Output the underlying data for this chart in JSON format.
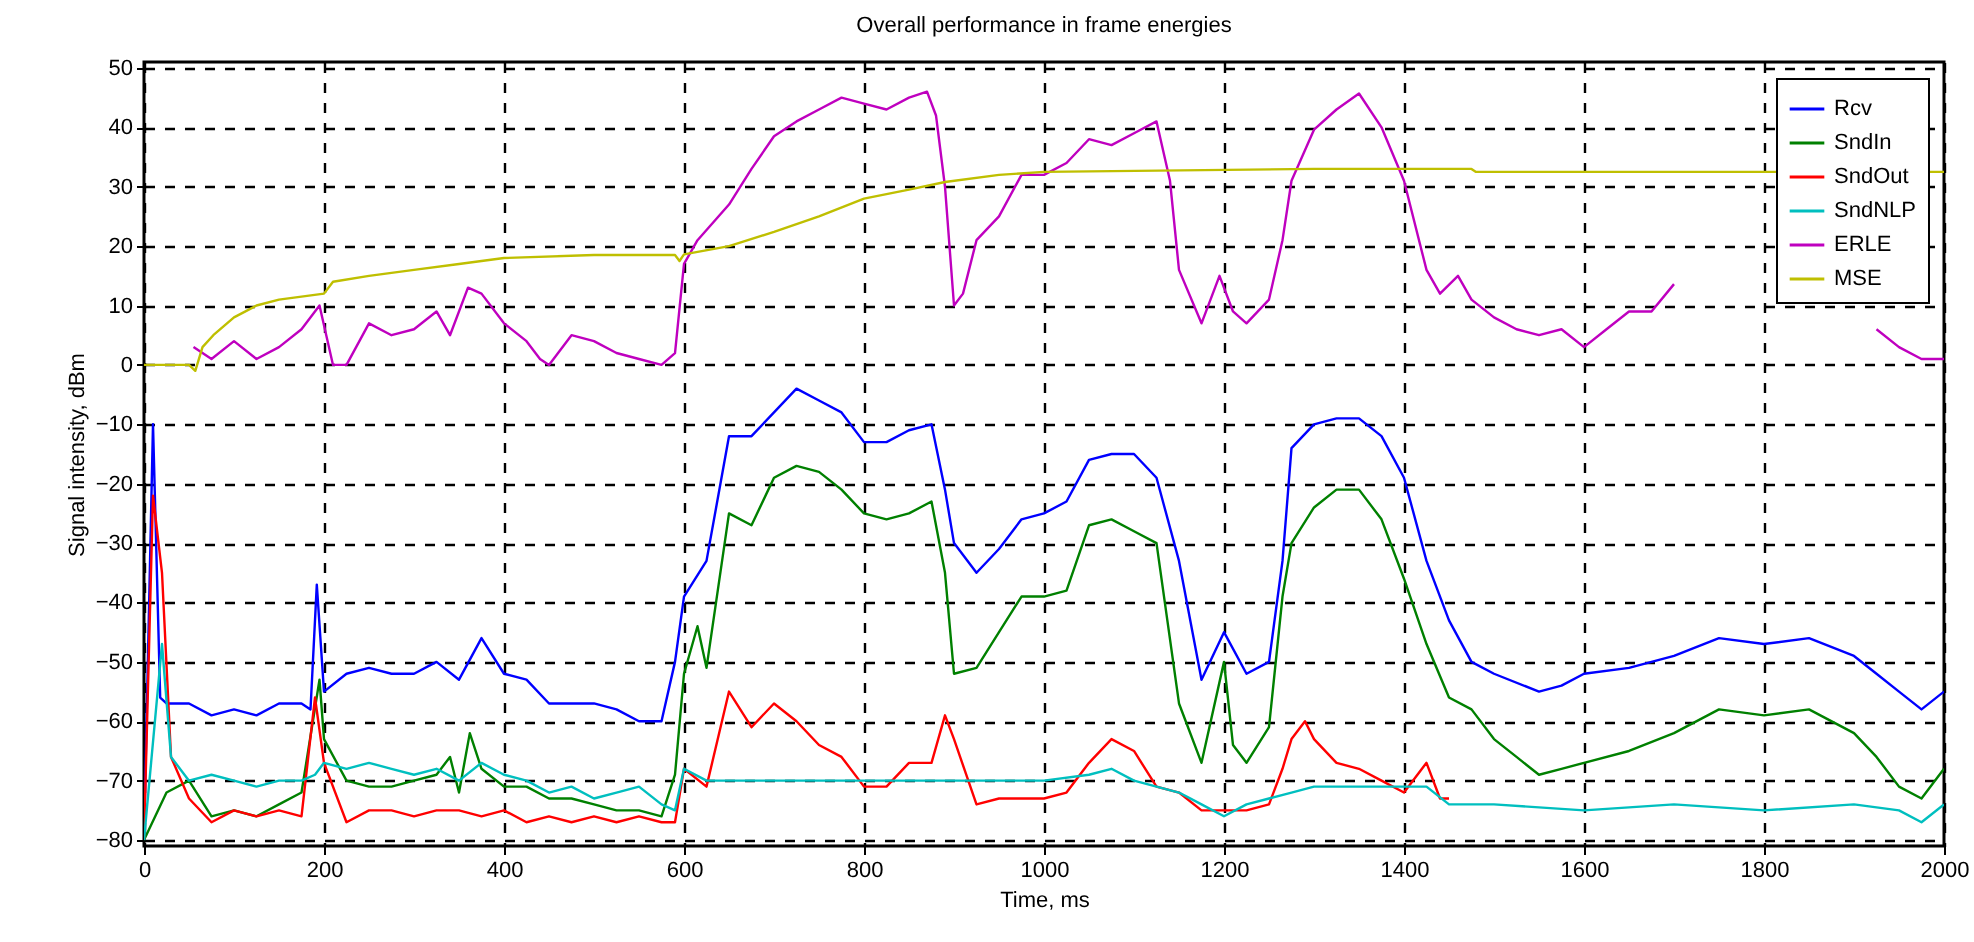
{
  "chart_data": {
    "type": "line",
    "title": "Overall performance in frame energies",
    "xlabel": "Time, ms",
    "ylabel": "Signal intensity, dBm",
    "xlim": [
      0,
      2000
    ],
    "xticks": [
      0,
      200,
      400,
      600,
      800,
      1000,
      1200,
      1400,
      1600,
      1800,
      2000
    ],
    "ylim": [
      -81,
      51
    ],
    "yticks": [
      -80,
      -70,
      -60,
      -50,
      -40,
      -30,
      -20,
      -10,
      0,
      10,
      20,
      30,
      40,
      50
    ],
    "grid": true,
    "legend": "top right",
    "line_style": "solid",
    "series": [
      {
        "name": "Rcv",
        "color": "#0000ff",
        "x": [
          0,
          10,
          18,
          25,
          50,
          75,
          100,
          125,
          150,
          175,
          185,
          192,
          200,
          225,
          250,
          275,
          300,
          325,
          350,
          375,
          400,
          425,
          450,
          475,
          500,
          525,
          550,
          575,
          590,
          600,
          625,
          650,
          675,
          700,
          725,
          750,
          775,
          800,
          825,
          850,
          875,
          890,
          900,
          925,
          950,
          975,
          1000,
          1025,
          1050,
          1075,
          1100,
          1125,
          1150,
          1175,
          1200,
          1225,
          1250,
          1265,
          1275,
          1300,
          1325,
          1350,
          1375,
          1400,
          1425,
          1450,
          1475,
          1500,
          1550,
          1575,
          1600,
          1650,
          1700,
          1750,
          1800,
          1850,
          1900,
          1925,
          1950,
          1975,
          2000
        ],
        "values": [
          -80,
          -10,
          -56,
          -57,
          -57,
          -59,
          -58,
          -59,
          -57,
          -57,
          -58,
          -37,
          -55,
          -52,
          -51,
          -52,
          -52,
          -50,
          -53,
          -46,
          -52,
          -53,
          -57,
          -57,
          -57,
          -58,
          -60,
          -60,
          -50,
          -39,
          -33,
          -12,
          -12,
          -8,
          -4,
          -6,
          -8,
          -13,
          -13,
          -11,
          -10,
          -21,
          -30,
          -35,
          -31,
          -26,
          -25,
          -23,
          -16,
          -15,
          -15,
          -19,
          -33,
          -53,
          -45,
          -52,
          -50,
          -33,
          -14,
          -10,
          -9,
          -9,
          -12,
          -19,
          -33,
          -43,
          -50,
          -52,
          -55,
          -54,
          -52,
          -51,
          -49,
          -46,
          -47,
          -46,
          -49,
          -52,
          -55,
          -58,
          -55
        ]
      },
      {
        "name": "SndIn",
        "color": "#008000",
        "x": [
          0,
          25,
          50,
          75,
          100,
          125,
          150,
          175,
          195,
          200,
          225,
          250,
          275,
          300,
          325,
          340,
          350,
          362,
          375,
          400,
          425,
          450,
          475,
          500,
          525,
          550,
          575,
          590,
          600,
          615,
          625,
          650,
          675,
          700,
          725,
          750,
          775,
          800,
          825,
          850,
          875,
          890,
          900,
          925,
          950,
          975,
          1000,
          1025,
          1050,
          1075,
          1100,
          1125,
          1150,
          1175,
          1200,
          1210,
          1225,
          1250,
          1265,
          1275,
          1300,
          1325,
          1350,
          1375,
          1400,
          1425,
          1450,
          1475,
          1500,
          1525,
          1550,
          1575,
          1600,
          1650,
          1700,
          1750,
          1800,
          1850,
          1900,
          1925,
          1950,
          1975,
          2000
        ],
        "values": [
          -80,
          -72,
          -70,
          -76,
          -75,
          -76,
          -74,
          -72,
          -53,
          -63,
          -70,
          -71,
          -71,
          -70,
          -69,
          -66,
          -72,
          -62,
          -68,
          -71,
          -71,
          -73,
          -73,
          -74,
          -75,
          -75,
          -76,
          -69,
          -52,
          -44,
          -51,
          -25,
          -27,
          -19,
          -17,
          -18,
          -21,
          -25,
          -26,
          -25,
          -23,
          -35,
          -52,
          -51,
          -45,
          -39,
          -39,
          -38,
          -27,
          -26,
          -28,
          -30,
          -57,
          -67,
          -50,
          -64,
          -67,
          -61,
          -39,
          -30,
          -24,
          -21,
          -21,
          -26,
          -36,
          -47,
          -56,
          -58,
          -63,
          -66,
          -69,
          -68,
          -67,
          -65,
          -62,
          -58,
          -59,
          -58,
          -62,
          -66,
          -71,
          -73,
          -68
        ]
      },
      {
        "name": "SndOut",
        "color": "#ff0000",
        "x": [
          0,
          10,
          20,
          30,
          50,
          75,
          100,
          125,
          150,
          175,
          190,
          200,
          225,
          250,
          275,
          300,
          325,
          350,
          375,
          400,
          425,
          450,
          475,
          500,
          525,
          550,
          575,
          590,
          600,
          625,
          650,
          675,
          700,
          725,
          750,
          775,
          800,
          825,
          850,
          875,
          890,
          900,
          925,
          950,
          975,
          1000,
          1025,
          1050,
          1075,
          1100,
          1125,
          1150,
          1175,
          1200,
          1225,
          1250,
          1265,
          1275,
          1290,
          1300,
          1325,
          1350,
          1375,
          1400,
          1425,
          1440,
          1450
        ],
        "values": [
          -80,
          -22,
          -35,
          -66,
          -73,
          -77,
          -75,
          -76,
          -75,
          -76,
          -56,
          -67,
          -77,
          -75,
          -75,
          -76,
          -75,
          -75,
          -76,
          -75,
          -77,
          -76,
          -77,
          -76,
          -77,
          -76,
          -77,
          -77,
          -68,
          -71,
          -55,
          -61,
          -57,
          -60,
          -64,
          -66,
          -71,
          -71,
          -67,
          -67,
          -59,
          -63,
          -74,
          -73,
          -73,
          -73,
          -72,
          -67,
          -63,
          -65,
          -71,
          -72,
          -75,
          -75,
          -75,
          -74,
          -68,
          -63,
          -60,
          -63,
          -67,
          -68,
          -70,
          -72,
          -67,
          -73,
          -73
        ]
      },
      {
        "name": "SndNLP",
        "color": "#00bfbf",
        "x": [
          0,
          20,
          30,
          50,
          75,
          100,
          125,
          150,
          175,
          190,
          200,
          225,
          250,
          275,
          300,
          325,
          350,
          375,
          400,
          425,
          450,
          475,
          500,
          525,
          550,
          575,
          590,
          600,
          625,
          700,
          800,
          900,
          1000,
          1050,
          1075,
          1100,
          1125,
          1150,
          1175,
          1200,
          1225,
          1250,
          1275,
          1300,
          1425,
          1450,
          1500,
          1600,
          1700,
          1800,
          1900,
          1950,
          1975,
          2000
        ],
        "values": [
          -80,
          -47,
          -66,
          -70,
          -69,
          -70,
          -71,
          -70,
          -70,
          -69,
          -67,
          -68,
          -67,
          -68,
          -69,
          -68,
          -70,
          -67,
          -69,
          -70,
          -72,
          -71,
          -73,
          -72,
          -71,
          -74,
          -75,
          -68,
          -70,
          -70,
          -70,
          -70,
          -70,
          -69,
          -68,
          -70,
          -71,
          -72,
          -74,
          -76,
          -74,
          -73,
          -72,
          -71,
          -71,
          -74,
          -74,
          -75,
          -74,
          -75,
          -74,
          -75,
          -77,
          -74
        ]
      },
      {
        "name": "ERLE",
        "color": "#bf00bf",
        "x": [
          55,
          75,
          100,
          125,
          150,
          175,
          195,
          210,
          225,
          250,
          275,
          300,
          325,
          340,
          360,
          375,
          400,
          425,
          440,
          450,
          475,
          500,
          525,
          550,
          575,
          590,
          600,
          615,
          650,
          675,
          700,
          725,
          750,
          775,
          800,
          825,
          850,
          870,
          880,
          890,
          900,
          910,
          925,
          950,
          975,
          1000,
          1025,
          1050,
          1075,
          1100,
          1125,
          1140,
          1150,
          1175,
          1195,
          1210,
          1225,
          1250,
          1265,
          1275,
          1300,
          1325,
          1350,
          1375,
          1400,
          1425,
          1440,
          1460,
          1475,
          1500,
          1525,
          1550,
          1575,
          1600,
          1625,
          1650,
          1675,
          1700,
          1725,
          1900,
          1925,
          1950,
          1975,
          2000
        ],
        "values": [
          3,
          1,
          4,
          1,
          3,
          6,
          10,
          0,
          0,
          7,
          5,
          6,
          9,
          5,
          13,
          12,
          7,
          4,
          1,
          0,
          5,
          4,
          2,
          1,
          0,
          2,
          17,
          21,
          27,
          33,
          38.5,
          41,
          43,
          45,
          44,
          43,
          45,
          46,
          42,
          30,
          10,
          12,
          21,
          25,
          32,
          32,
          34,
          38,
          37,
          39,
          41,
          31,
          16,
          7,
          15,
          9,
          7,
          11,
          21,
          31,
          39.6,
          43,
          45.7,
          40,
          31,
          16,
          12,
          15,
          11,
          8,
          6,
          5,
          6,
          3,
          6,
          9,
          9,
          13.6,
          null,
          null,
          6,
          3,
          1,
          1
        ]
      },
      {
        "name": "MSE",
        "color": "#bfbf00",
        "x": [
          0,
          50,
          57,
          65,
          77,
          100,
          125,
          150,
          200,
          210,
          250,
          300,
          350,
          400,
          500,
          590,
          595,
          600,
          650,
          700,
          750,
          800,
          850,
          890,
          950,
          1000,
          1300,
          1475,
          1480,
          2000
        ],
        "values": [
          0,
          0,
          -1,
          3,
          5,
          8,
          10,
          11,
          12,
          14,
          15,
          16,
          17,
          18,
          18.5,
          18.5,
          17.5,
          18.6,
          20,
          22.4,
          25,
          28,
          29.5,
          30.8,
          32,
          32.5,
          33,
          33,
          32.5,
          32.5
        ]
      }
    ]
  }
}
